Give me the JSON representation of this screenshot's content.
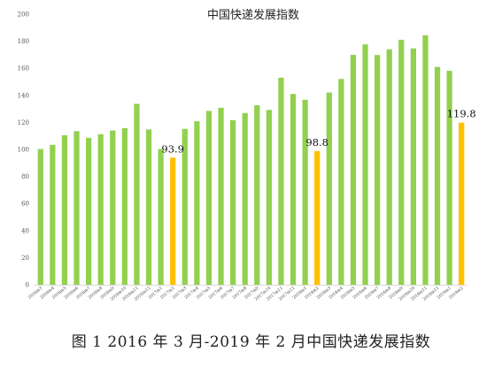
{
  "chart_data": {
    "type": "bar",
    "title": "中国快递发展指数",
    "caption": "图 1 2016 年 3 月-2019 年 2 月中国快递发展指数",
    "ylim": [
      0,
      200
    ],
    "yticks": [
      0,
      20,
      40,
      60,
      80,
      100,
      120,
      140,
      160,
      180,
      200
    ],
    "grid": false,
    "categories": [
      "2016m3",
      "2016m4",
      "2016m5",
      "2016m6",
      "2016m7",
      "2016m8",
      "2016m9",
      "2016m10",
      "2016m11",
      "2016m12",
      "2017m1",
      "2017m2",
      "2017m3",
      "2017m4",
      "2017m5",
      "2017m6",
      "2017m7",
      "2017m8",
      "2017m9",
      "2017m10",
      "2017m11",
      "2017m12",
      "2018m1",
      "2018m2",
      "2018m3",
      "2018m4",
      "2018m5",
      "2018m6",
      "2018m7",
      "2018m8",
      "2018m9",
      "2018m10",
      "2018m11",
      "2018m12",
      "2019m1",
      "2019m2"
    ],
    "values": [
      100.3,
      103.4,
      110.5,
      113.5,
      108.6,
      111.3,
      114.0,
      115.7,
      133.7,
      114.8,
      100.3,
      93.9,
      115.2,
      120.8,
      128.5,
      130.8,
      121.7,
      126.9,
      132.7,
      129.2,
      153.0,
      141.0,
      136.7,
      98.8,
      142.1,
      152.1,
      169.9,
      177.7,
      169.8,
      174.0,
      181.1,
      174.7,
      184.4,
      161.0,
      158.1,
      119.8
    ],
    "highlighted": [
      "2017m2",
      "2018m2",
      "2019m2"
    ],
    "data_labels": [
      {
        "category": "2017m2",
        "text": "93.9"
      },
      {
        "category": "2018m2",
        "text": "98.8"
      },
      {
        "category": "2019m2",
        "text": "119.8"
      }
    ],
    "colors": {
      "bar": "#92D050",
      "highlight": "#FFC000",
      "axis": "#D9D9D9"
    }
  }
}
